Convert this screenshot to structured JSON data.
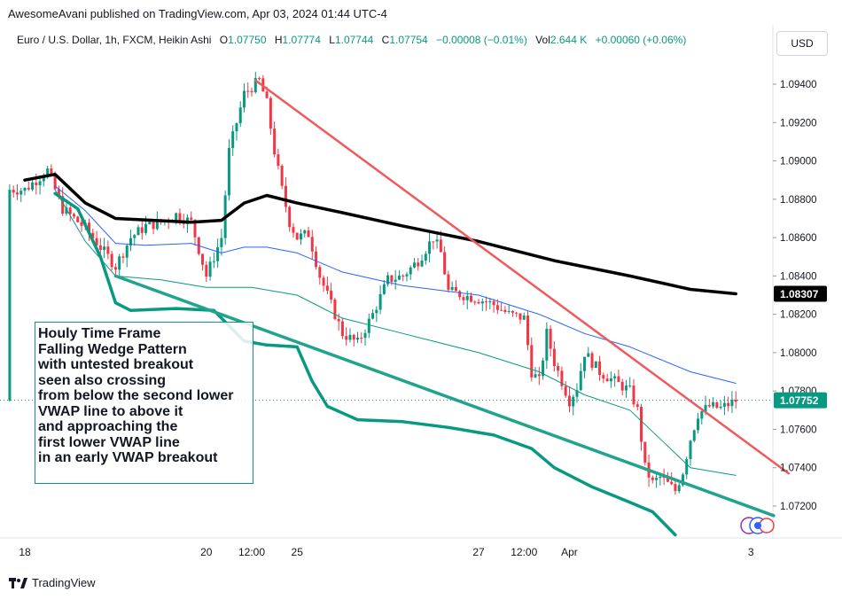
{
  "header": {
    "published": "AwesomeAvani published on TradingView.com, Apr 03, 2024 01:44 UTC-4",
    "symbol": "Euro / U.S. Dollar, 1h, FXCM, Heikin Ashi",
    "o_label": "O",
    "o_value": "1.07750",
    "h_label": "H",
    "h_value": "1.07774",
    "l_label": "L",
    "l_value": "1.07744",
    "c_label": "C",
    "c_value": "1.07754",
    "change": "−0.00008 (−0.01%)",
    "vol_label": "Vol",
    "vol_value": "2.644 K",
    "vol_change": "+0.00060 (+0.06%)",
    "currency_button": "USD"
  },
  "annotation": {
    "lines": [
      "Houly Time Frame",
      "Falling Wedge Pattern",
      "with untested breakout",
      "seen also crossing",
      "from below the second lower",
      "VWAP line to above it",
      "and approaching the",
      "first lower VWAP line",
      "in an early VWAP breakout"
    ]
  },
  "footer": {
    "brand": "TradingView"
  },
  "colors": {
    "up": "#089981",
    "down": "#f23645",
    "black_line": "#000000",
    "vwap_upper": "#2962ff",
    "band_teal": "#089981",
    "trend_red": "#f05a5f",
    "trend_teal": "#22a48c"
  },
  "chart_data": {
    "type": "candlestick",
    "instrument": "EURUSD",
    "timeframe": "1h",
    "ylim": [
      1.0705,
      1.0962
    ],
    "y_ticks": [
      1.094,
      1.092,
      1.09,
      1.088,
      1.086,
      1.084,
      1.082,
      1.08,
      1.078,
      1.076,
      1.074,
      1.072
    ],
    "x_ticks": [
      {
        "label": "18",
        "t": 0
      },
      {
        "label": "20",
        "t": 48
      },
      {
        "label": "12:00",
        "t": 60
      },
      {
        "label": "25",
        "t": 72
      },
      {
        "label": "27",
        "t": 120
      },
      {
        "label": "12:00",
        "t": 132
      },
      {
        "label": "Apr",
        "t": 144
      },
      {
        "label": "3",
        "t": 192
      }
    ],
    "last_price_labels": [
      {
        "value": 1.08307,
        "style": "black"
      },
      {
        "value": 1.07752,
        "style": "teal"
      }
    ],
    "price_path": [
      [
        0,
        1.0885
      ],
      [
        6,
        1.0895
      ],
      [
        10,
        1.0875
      ],
      [
        16,
        1.0865
      ],
      [
        20,
        1.0855
      ],
      [
        24,
        1.0845
      ],
      [
        28,
        1.086
      ],
      [
        32,
        1.0866
      ],
      [
        36,
        1.0868
      ],
      [
        40,
        1.0872
      ],
      [
        44,
        1.0868
      ],
      [
        48,
        1.084
      ],
      [
        52,
        1.086
      ],
      [
        54,
        1.0905
      ],
      [
        58,
        1.0935
      ],
      [
        62,
        1.0942
      ],
      [
        64,
        1.093
      ],
      [
        66,
        1.0905
      ],
      [
        68,
        1.0885
      ],
      [
        70,
        1.0868
      ],
      [
        72,
        1.086
      ],
      [
        75,
        1.0862
      ],
      [
        76,
        1.0855
      ],
      [
        78,
        1.084
      ],
      [
        81,
        1.0825
      ],
      [
        84,
        1.081
      ],
      [
        88,
        1.0805
      ],
      [
        92,
        1.082
      ],
      [
        96,
        1.0838
      ],
      [
        100,
        1.084
      ],
      [
        104,
        1.0848
      ],
      [
        108,
        1.086
      ],
      [
        110,
        1.0852
      ],
      [
        112,
        1.0832
      ],
      [
        116,
        1.083
      ],
      [
        120,
        1.0828
      ],
      [
        124,
        1.0825
      ],
      [
        128,
        1.082
      ],
      [
        132,
        1.0818
      ],
      [
        134,
        1.079
      ],
      [
        136,
        1.0785
      ],
      [
        138,
        1.081
      ],
      [
        140,
        1.0795
      ],
      [
        142,
        1.0785
      ],
      [
        144,
        1.0775
      ],
      [
        146,
        1.0782
      ],
      [
        148,
        1.08
      ],
      [
        150,
        1.0795
      ],
      [
        152,
        1.079
      ],
      [
        156,
        1.0785
      ],
      [
        160,
        1.078
      ],
      [
        162,
        1.077
      ],
      [
        164,
        1.074
      ],
      [
        166,
        1.0732
      ],
      [
        168,
        1.0735
      ],
      [
        172,
        1.0728
      ],
      [
        174,
        1.0738
      ],
      [
        176,
        1.0755
      ],
      [
        178,
        1.0768
      ],
      [
        181,
        1.0772
      ],
      [
        184,
        1.0771
      ],
      [
        188,
        1.0775
      ]
    ],
    "series": [
      {
        "kind": "line",
        "color": "black",
        "points": [
          [
            0,
            1.089
          ],
          [
            8,
            1.0893
          ],
          [
            16,
            1.0878
          ],
          [
            24,
            1.087
          ],
          [
            34,
            1.0869
          ],
          [
            44,
            1.0868
          ],
          [
            52,
            1.0869
          ],
          [
            58,
            1.0878
          ],
          [
            64,
            1.0882
          ],
          [
            72,
            1.0878
          ],
          [
            84,
            1.0873
          ],
          [
            100,
            1.0866
          ],
          [
            120,
            1.0858
          ],
          [
            140,
            1.0848
          ],
          [
            160,
            1.084
          ],
          [
            176,
            1.0833
          ],
          [
            188,
            1.08307
          ]
        ]
      },
      {
        "kind": "line",
        "color": "blue",
        "points": [
          [
            8,
            1.0887
          ],
          [
            16,
            1.0874
          ],
          [
            24,
            1.0857
          ],
          [
            32,
            1.0856
          ],
          [
            44,
            1.0857
          ],
          [
            52,
            1.0852
          ],
          [
            58,
            1.0855
          ],
          [
            64,
            1.0855
          ],
          [
            72,
            1.0852
          ],
          [
            84,
            1.0842
          ],
          [
            100,
            1.0835
          ],
          [
            120,
            1.083
          ],
          [
            136,
            1.082
          ],
          [
            148,
            1.081
          ],
          [
            160,
            1.0803
          ],
          [
            176,
            1.079
          ],
          [
            188,
            1.0784
          ]
        ]
      },
      {
        "kind": "line",
        "color": "thin-teal",
        "points": [
          [
            8,
            1.0885
          ],
          [
            16,
            1.0858
          ],
          [
            24,
            1.084
          ],
          [
            36,
            1.0838
          ],
          [
            48,
            1.0834
          ],
          [
            60,
            1.0834
          ],
          [
            72,
            1.083
          ],
          [
            84,
            1.0818
          ],
          [
            100,
            1.081
          ],
          [
            120,
            1.08
          ],
          [
            136,
            1.079
          ],
          [
            148,
            1.0778
          ],
          [
            160,
            1.077
          ],
          [
            168,
            1.0755
          ],
          [
            176,
            1.074
          ],
          [
            188,
            1.0736
          ]
        ]
      },
      {
        "kind": "line",
        "color": "thick-teal",
        "points": [
          [
            8,
            1.0883
          ],
          [
            14,
            1.0875
          ],
          [
            20,
            1.085
          ],
          [
            24,
            1.0826
          ],
          [
            28,
            1.0822
          ],
          [
            40,
            1.0823
          ],
          [
            50,
            1.0822
          ],
          [
            58,
            1.0806
          ],
          [
            64,
            1.0804
          ],
          [
            72,
            1.0803
          ],
          [
            76,
            1.0785
          ],
          [
            80,
            1.0772
          ],
          [
            88,
            1.0765
          ],
          [
            100,
            1.0764
          ],
          [
            112,
            1.0761
          ],
          [
            124,
            1.0757
          ],
          [
            134,
            1.075
          ],
          [
            140,
            1.074
          ],
          [
            150,
            1.073
          ],
          [
            160,
            1.0722
          ],
          [
            166,
            1.0717
          ],
          [
            172,
            1.0705
          ]
        ]
      },
      {
        "kind": "trendline",
        "color": "red",
        "points": [
          [
            61,
            1.0942
          ],
          [
            202,
            1.0737
          ]
        ]
      },
      {
        "kind": "trendline",
        "color": "teal",
        "points": [
          [
            24,
            1.084
          ],
          [
            198,
            1.0715
          ]
        ]
      }
    ]
  }
}
